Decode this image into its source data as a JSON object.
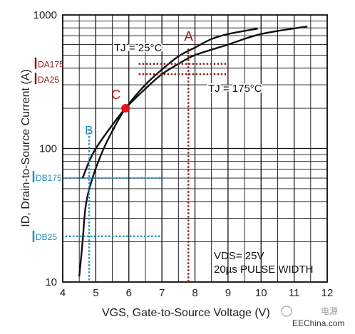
{
  "chart_data": {
    "type": "line",
    "xlabel": "VGS, Gate-to-Source Voltage (V)",
    "ylabel": "ID, Drain-to-Source Current (A)",
    "xlim": [
      4,
      12
    ],
    "ylim": [
      10,
      1000
    ],
    "yscale": "log",
    "grid": true,
    "x_ticks": [
      "4",
      "5",
      "6",
      "7",
      "8",
      "9",
      "10",
      "11",
      "12"
    ],
    "y_ticks": [
      "10",
      "100",
      "1000"
    ],
    "series": [
      {
        "name": "TJ = 25°C",
        "points": [
          [
            4.6,
            60
          ],
          [
            4.8,
            80
          ],
          [
            5.0,
            100
          ],
          [
            5.5,
            150
          ],
          [
            5.9,
            200
          ],
          [
            6.5,
            280
          ],
          [
            7.0,
            360
          ],
          [
            7.5,
            430
          ],
          [
            8.0,
            500
          ],
          [
            9.0,
            600
          ],
          [
            10.0,
            720
          ],
          [
            11.4,
            820
          ]
        ]
      },
      {
        "name": "TJ = 175°C",
        "points": [
          [
            4.5,
            11
          ],
          [
            4.6,
            20
          ],
          [
            4.7,
            38
          ],
          [
            4.9,
            60
          ],
          [
            5.2,
            95
          ],
          [
            5.5,
            135
          ],
          [
            5.9,
            200
          ],
          [
            6.5,
            300
          ],
          [
            7.0,
            390
          ],
          [
            7.5,
            490
          ],
          [
            8.0,
            570
          ],
          [
            8.5,
            660
          ],
          [
            9.0,
            720
          ],
          [
            9.9,
            790
          ]
        ]
      }
    ],
    "annotations": {
      "curve_labels": [
        "TJ = 25°C",
        "TJ = 175°C"
      ],
      "conditions": [
        "VDS= 25V",
        "20µs PULSE WIDTH"
      ],
      "point_A": {
        "label": "A",
        "x": 7.8
      },
      "point_B": {
        "label": "B",
        "x": 4.8
      },
      "point_C": {
        "label": "C",
        "x": 5.9,
        "y": 200
      },
      "DA175": {
        "label": "DA175",
        "y": 430
      },
      "DA25": {
        "label": "DA25",
        "y": 360
      },
      "DB175": {
        "label": "DB175",
        "y": 60
      },
      "DB25": {
        "label": "DB25",
        "y": 22
      }
    },
    "colors": {
      "point_c": "#e8111b",
      "markers_a": "#8b1a1a",
      "markers_b": "#1f8fbf"
    }
  },
  "watermark": {
    "brand": "电源",
    "site": "EEChina.com"
  }
}
